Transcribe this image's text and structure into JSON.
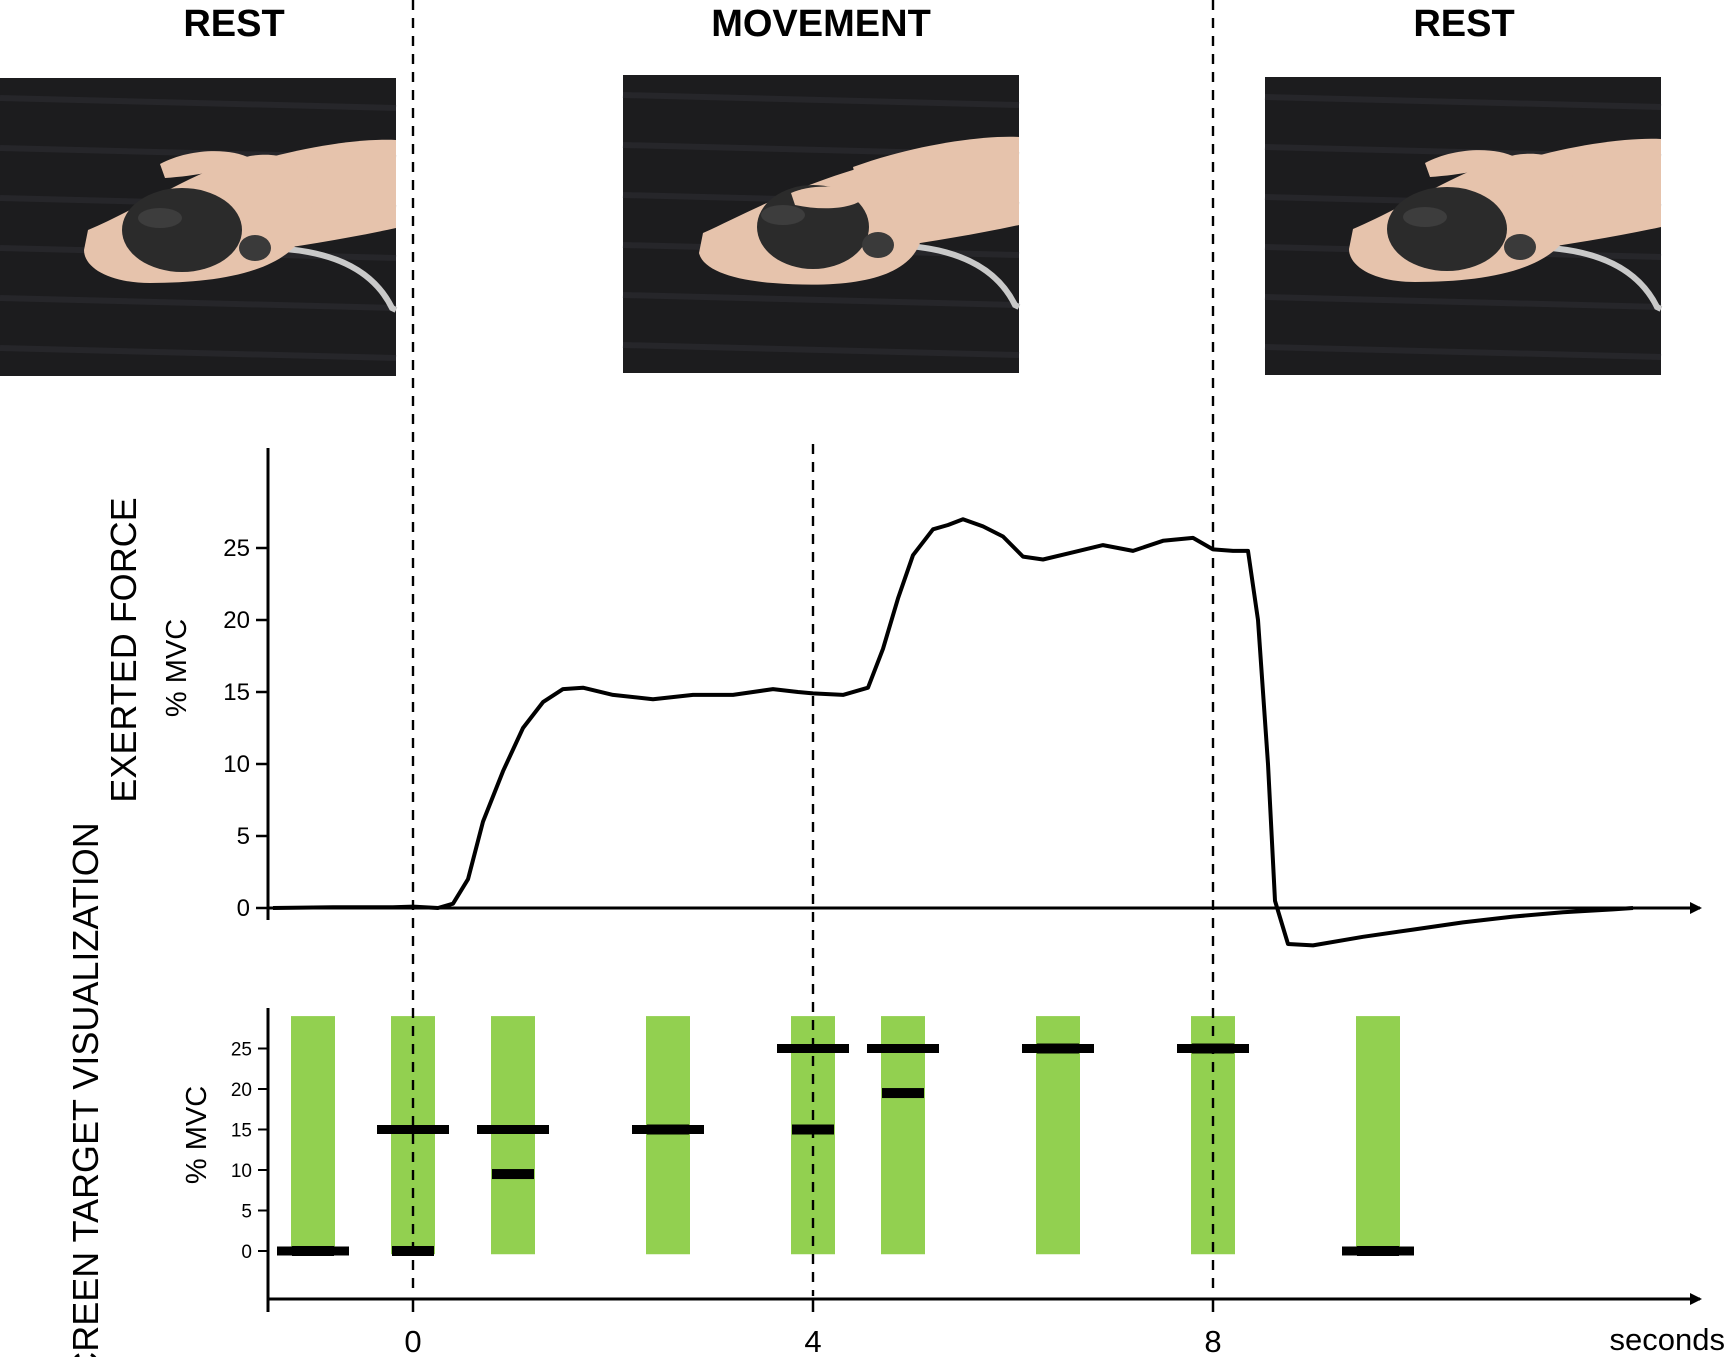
{
  "phases": [
    "REST",
    "MOVEMENT",
    "REST"
  ],
  "colors": {
    "green": "#92d050",
    "line": "#000000",
    "table": "#1c1c1e",
    "hand": "#e6c3ac",
    "bulb": "#2b2b2b"
  },
  "photos": [
    {
      "phase": "REST",
      "icon": "hand-holding-bulb-relaxed"
    },
    {
      "phase": "MOVEMENT",
      "icon": "hand-squeezing-bulb"
    },
    {
      "phase": "REST",
      "icon": "hand-holding-bulb-relaxed"
    }
  ],
  "chart_data": [
    {
      "type": "line",
      "ylabel": "EXERTED FORCE",
      "units": "% MVC",
      "yticks": [
        0,
        5,
        10,
        15,
        20,
        25
      ],
      "xlim": [
        -1.45,
        13.0
      ],
      "ylim": [
        0,
        30
      ],
      "series": [
        {
          "x": [
            -1.4,
            -0.8,
            -0.2,
            0.0,
            0.25,
            0.4,
            0.55,
            0.7,
            0.9,
            1.1,
            1.3,
            1.5,
            1.7,
            2.0,
            2.4,
            2.8,
            3.2,
            3.6,
            3.85,
            4.0,
            4.3,
            4.55,
            4.7,
            4.85,
            5.0,
            5.2,
            5.35,
            5.5,
            5.7,
            5.9,
            6.1,
            6.3,
            6.6,
            6.9,
            7.2,
            7.5,
            7.8,
            8.0,
            8.2,
            8.35,
            8.45,
            8.55,
            8.62,
            8.75,
            9.0,
            9.5,
            10.0,
            10.5,
            11.0,
            11.5,
            12.0,
            12.2
          ],
          "y": [
            0.0,
            0.05,
            0.05,
            0.1,
            0.0,
            0.3,
            2.0,
            6.0,
            9.5,
            12.5,
            14.3,
            15.2,
            15.3,
            14.8,
            14.5,
            14.8,
            14.8,
            15.2,
            15.0,
            14.9,
            14.8,
            15.3,
            18.0,
            21.5,
            24.5,
            26.3,
            26.6,
            27.0,
            26.5,
            25.8,
            24.4,
            24.2,
            24.7,
            25.2,
            24.8,
            25.5,
            25.7,
            24.9,
            24.8,
            24.8,
            20.0,
            10.0,
            0.5,
            -2.5,
            -2.6,
            -2.0,
            -1.5,
            -1.0,
            -0.6,
            -0.3,
            -0.1,
            0.0
          ]
        }
      ]
    },
    {
      "type": "bar",
      "ylabel": "SCREEN TARGET VISUALIZATION",
      "units": "% MVC",
      "yticks": [
        0,
        5,
        10,
        15,
        20,
        25
      ],
      "xticks": [
        "0",
        "4",
        "8"
      ],
      "xlabel": "seconds",
      "ylim": [
        -6,
        30
      ],
      "bar_range": [
        0,
        29
      ],
      "frames": [
        {
          "x": -1.0,
          "force": 0,
          "target": 0
        },
        {
          "x": 0.0,
          "force": 0,
          "target": 15
        },
        {
          "x": 1.0,
          "force": 9.5,
          "target": 15
        },
        {
          "x": 2.55,
          "force": 15,
          "target": 15
        },
        {
          "x": 4.0,
          "force": 15,
          "target": 25
        },
        {
          "x": 4.9,
          "force": 19.5,
          "target": 25
        },
        {
          "x": 6.45,
          "force": 25,
          "target": 25
        },
        {
          "x": 8.0,
          "force": 25,
          "target": 25
        },
        {
          "x": 9.65,
          "force": 0,
          "target": 0
        }
      ]
    }
  ]
}
